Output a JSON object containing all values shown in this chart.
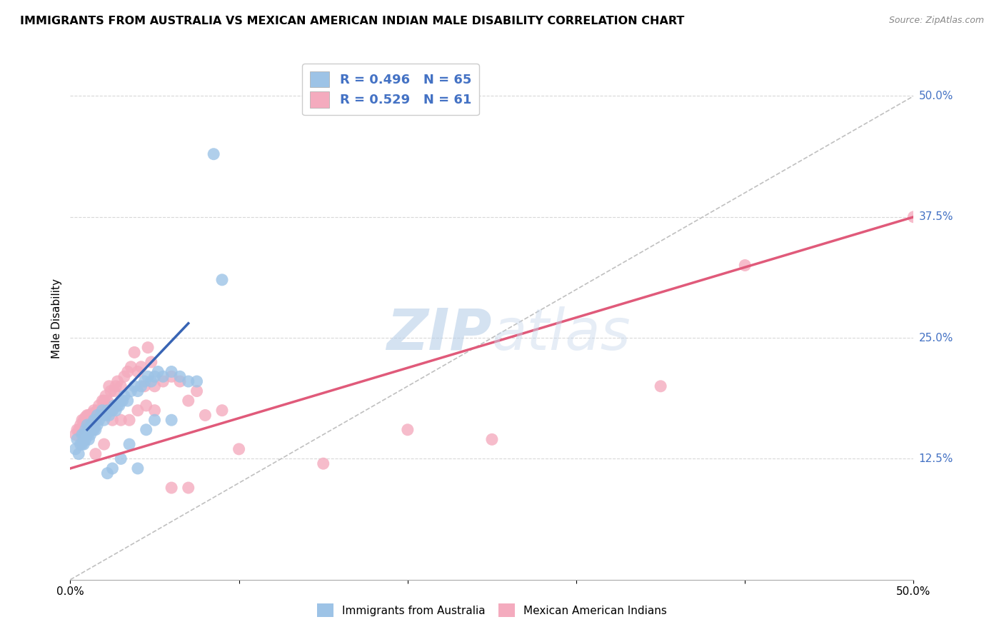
{
  "title": "IMMIGRANTS FROM AUSTRALIA VS MEXICAN AMERICAN INDIAN MALE DISABILITY CORRELATION CHART",
  "source": "Source: ZipAtlas.com",
  "ylabel": "Male Disability",
  "ytick_labels": [
    "12.5%",
    "25.0%",
    "37.5%",
    "50.0%"
  ],
  "ytick_values": [
    0.125,
    0.25,
    0.375,
    0.5
  ],
  "xlim": [
    0.0,
    0.5
  ],
  "ylim": [
    0.0,
    0.54
  ],
  "legend_r1": "R = 0.496",
  "legend_n1": "N = 65",
  "legend_r2": "R = 0.529",
  "legend_n2": "N = 61",
  "color_blue": "#9dc3e6",
  "color_pink": "#f4abbe",
  "color_blue_text": "#4472C4",
  "color_pink_line": "#e05a7a",
  "color_blue_line": "#3864b4",
  "color_diag": "#c0c0c0",
  "watermark_zip": "ZIP",
  "watermark_atlas": "atlas",
  "blue_scatter_x": [
    0.003,
    0.004,
    0.005,
    0.006,
    0.007,
    0.007,
    0.008,
    0.008,
    0.009,
    0.009,
    0.01,
    0.01,
    0.011,
    0.011,
    0.012,
    0.012,
    0.013,
    0.013,
    0.014,
    0.014,
    0.015,
    0.015,
    0.016,
    0.016,
    0.017,
    0.018,
    0.019,
    0.02,
    0.021,
    0.022,
    0.023,
    0.024,
    0.025,
    0.026,
    0.027,
    0.028,
    0.029,
    0.03,
    0.031,
    0.032,
    0.034,
    0.036,
    0.038,
    0.04,
    0.042,
    0.044,
    0.046,
    0.048,
    0.05,
    0.052,
    0.055,
    0.06,
    0.065,
    0.07,
    0.075,
    0.022,
    0.025,
    0.03,
    0.035,
    0.04,
    0.045,
    0.05,
    0.06,
    0.085,
    0.09
  ],
  "blue_scatter_y": [
    0.135,
    0.145,
    0.13,
    0.14,
    0.15,
    0.14,
    0.15,
    0.14,
    0.155,
    0.145,
    0.15,
    0.16,
    0.155,
    0.145,
    0.16,
    0.15,
    0.155,
    0.16,
    0.155,
    0.165,
    0.165,
    0.155,
    0.16,
    0.17,
    0.165,
    0.17,
    0.175,
    0.165,
    0.17,
    0.175,
    0.17,
    0.175,
    0.175,
    0.18,
    0.175,
    0.18,
    0.18,
    0.185,
    0.185,
    0.19,
    0.185,
    0.195,
    0.2,
    0.195,
    0.2,
    0.205,
    0.21,
    0.205,
    0.21,
    0.215,
    0.21,
    0.215,
    0.21,
    0.205,
    0.205,
    0.11,
    0.115,
    0.125,
    0.14,
    0.115,
    0.155,
    0.165,
    0.165,
    0.44,
    0.31
  ],
  "pink_scatter_x": [
    0.003,
    0.004,
    0.005,
    0.006,
    0.007,
    0.008,
    0.009,
    0.01,
    0.011,
    0.012,
    0.013,
    0.014,
    0.015,
    0.016,
    0.017,
    0.018,
    0.019,
    0.02,
    0.021,
    0.022,
    0.023,
    0.024,
    0.025,
    0.026,
    0.027,
    0.028,
    0.03,
    0.032,
    0.034,
    0.036,
    0.038,
    0.04,
    0.042,
    0.044,
    0.046,
    0.048,
    0.05,
    0.055,
    0.06,
    0.065,
    0.07,
    0.075,
    0.08,
    0.09,
    0.1,
    0.15,
    0.2,
    0.25,
    0.35,
    0.5,
    0.015,
    0.02,
    0.025,
    0.03,
    0.035,
    0.04,
    0.045,
    0.05,
    0.06,
    0.07,
    0.4
  ],
  "pink_scatter_y": [
    0.15,
    0.155,
    0.155,
    0.16,
    0.165,
    0.165,
    0.168,
    0.17,
    0.17,
    0.168,
    0.172,
    0.175,
    0.165,
    0.175,
    0.18,
    0.175,
    0.185,
    0.185,
    0.19,
    0.185,
    0.2,
    0.195,
    0.175,
    0.195,
    0.2,
    0.205,
    0.2,
    0.21,
    0.215,
    0.22,
    0.235,
    0.215,
    0.22,
    0.2,
    0.24,
    0.225,
    0.2,
    0.205,
    0.21,
    0.205,
    0.185,
    0.195,
    0.17,
    0.175,
    0.135,
    0.12,
    0.155,
    0.145,
    0.2,
    0.375,
    0.13,
    0.14,
    0.165,
    0.165,
    0.165,
    0.175,
    0.18,
    0.175,
    0.095,
    0.095,
    0.325
  ],
  "blue_line_x": [
    0.01,
    0.07
  ],
  "blue_line_y": [
    0.155,
    0.265
  ],
  "pink_line_x": [
    0.0,
    0.5
  ],
  "pink_line_y": [
    0.115,
    0.375
  ],
  "diag_line_x": [
    0.0,
    0.5
  ],
  "diag_line_y": [
    0.0,
    0.5
  ],
  "background_color": "#ffffff",
  "grid_color": "#d8d8d8"
}
